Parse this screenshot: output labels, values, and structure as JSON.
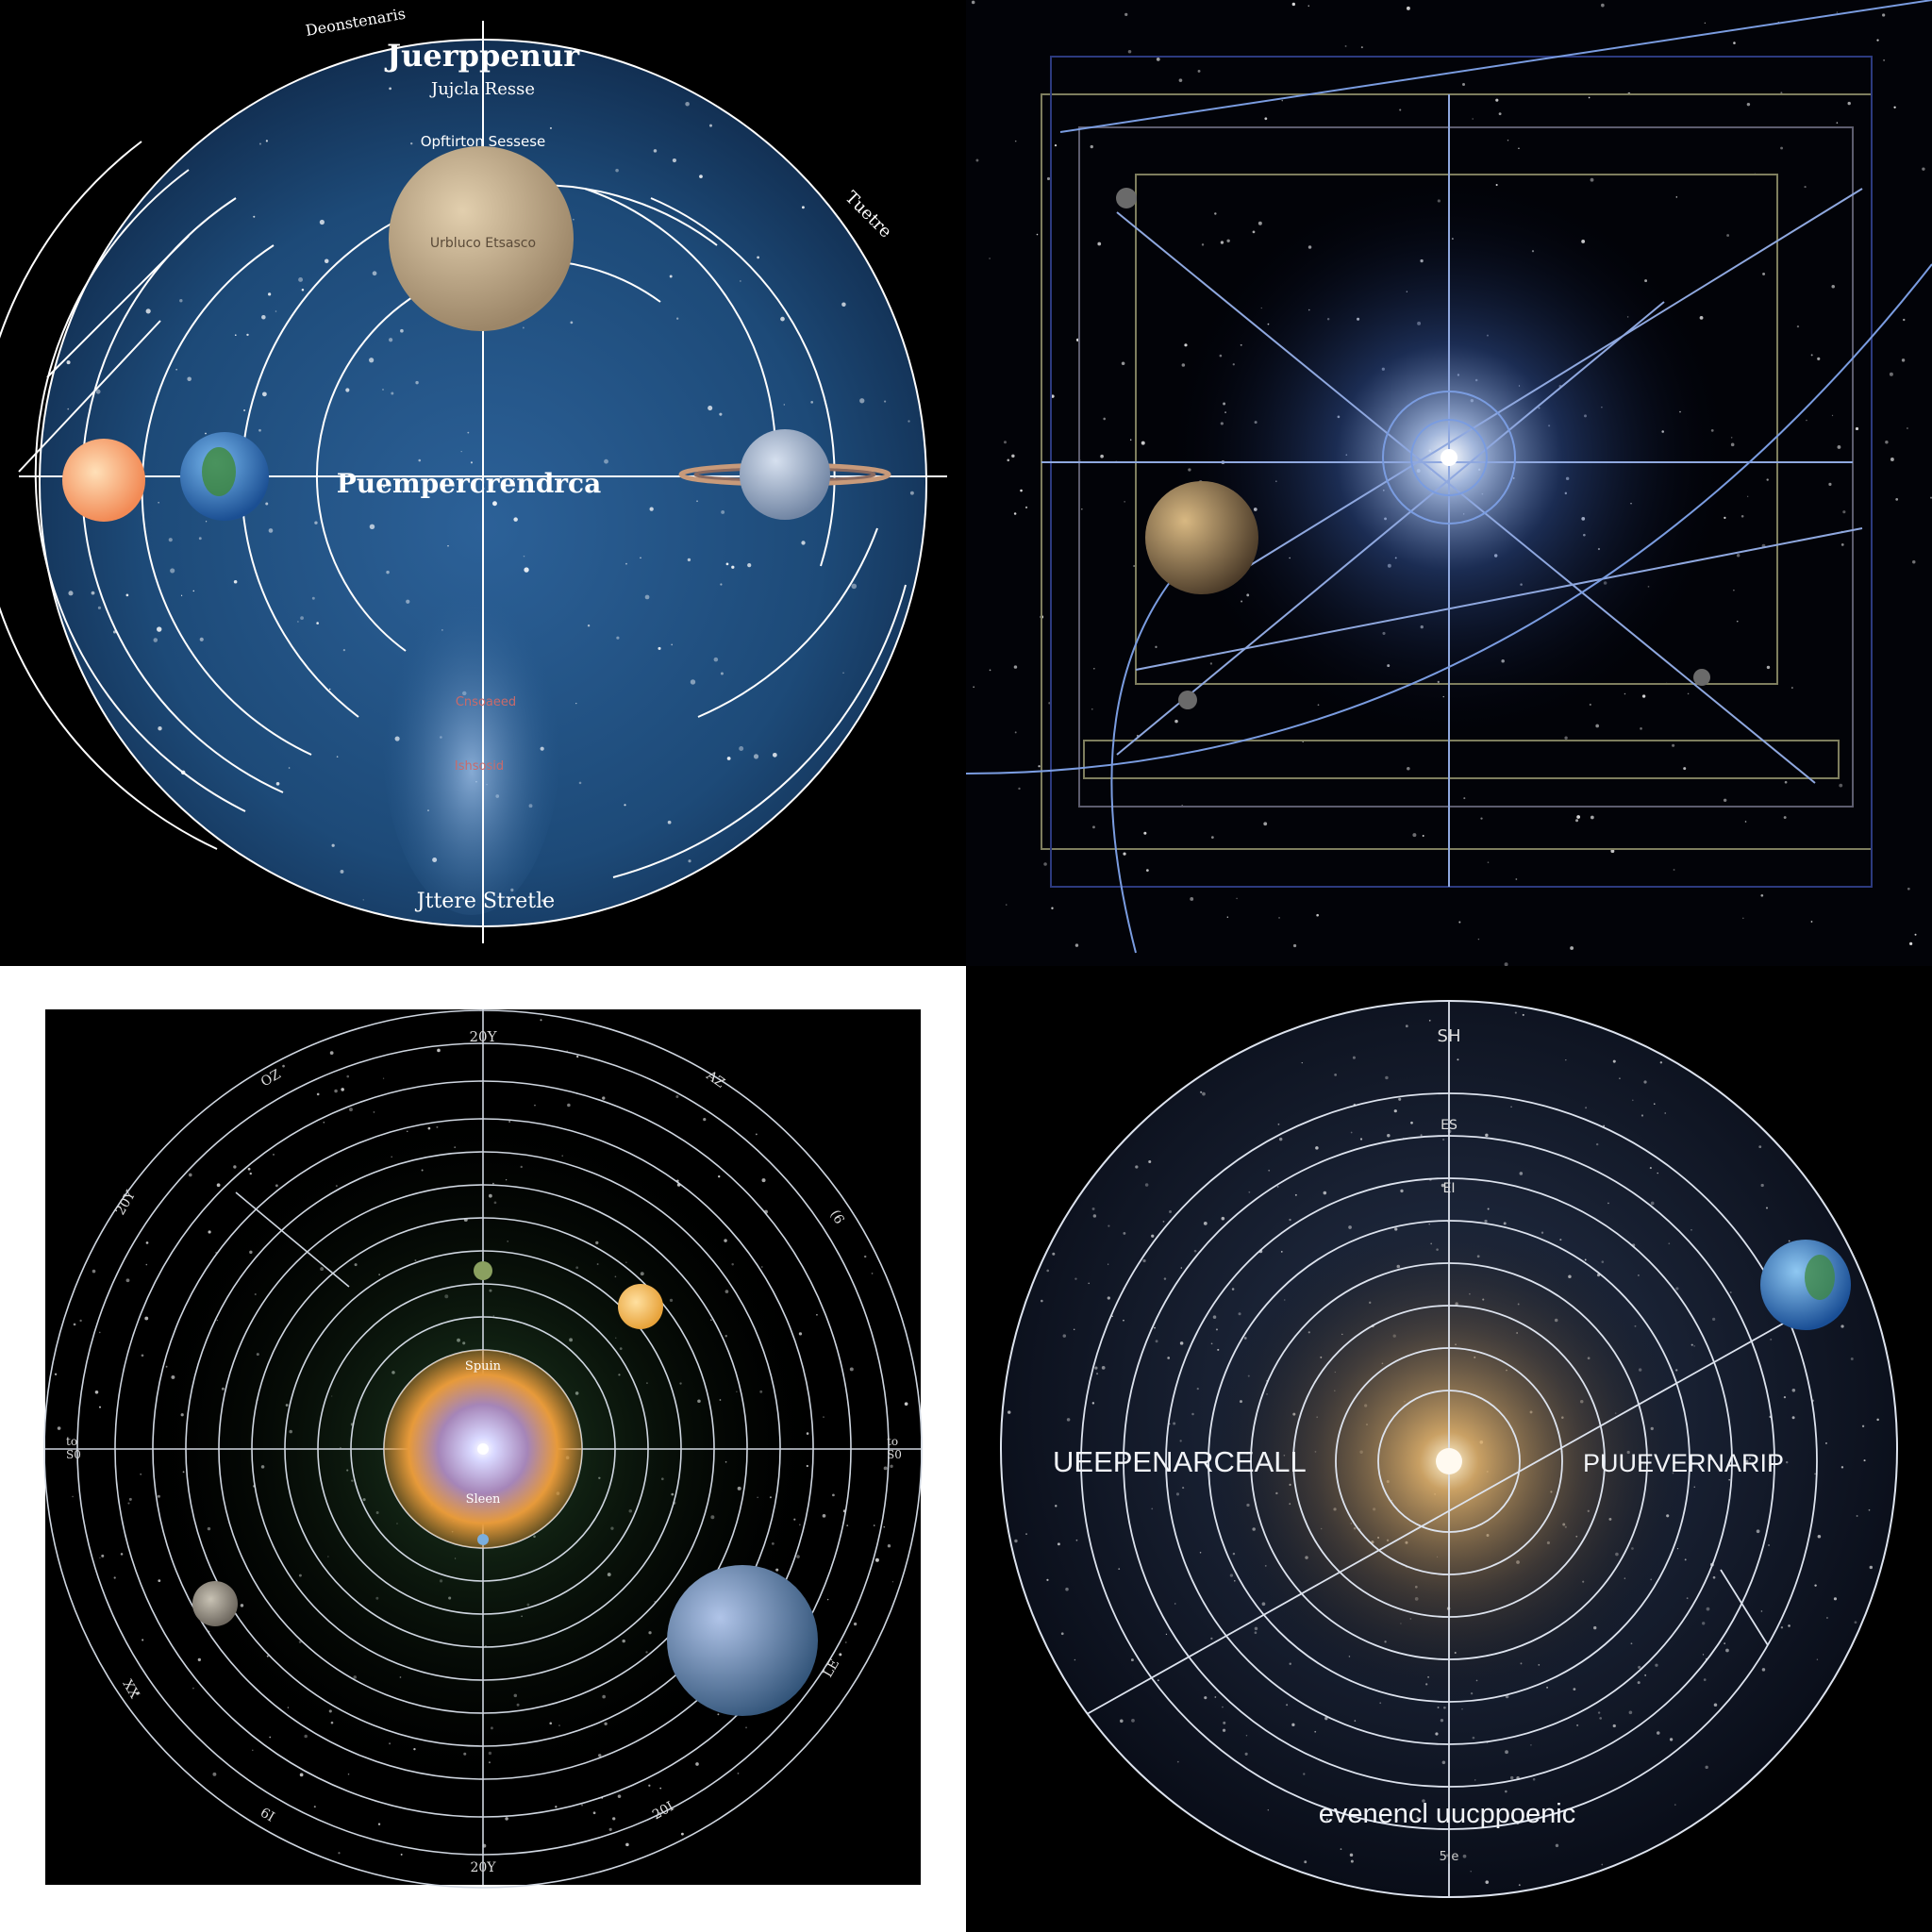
{
  "panel1": {
    "title": "Juerppenur",
    "top_small_label": "Deonstenaris",
    "line2": "Jujcla Resse",
    "line3": "Opftirton Sessese",
    "planet_label": "Urbluco Etsasco",
    "right_label": "Tuetre",
    "center_label": "Puempercrendrca",
    "red_label_1": "Cnsoaeed",
    "red_label_2": "Ishsosid",
    "bottom_label": "Jttere  Stretle"
  },
  "panel2": {},
  "panel3": {
    "top_label": "20Y",
    "ring_labels": [
      "OZ",
      "AZ",
      "20Y",
      "(6",
      "to",
      "to",
      "S0",
      "LE",
      "XX",
      "6I",
      "20I",
      "20Y"
    ],
    "left_labels": [
      "to",
      "S0"
    ],
    "right_labels": [
      "to",
      "S0"
    ],
    "sun_top_label": "Spuin",
    "sun_bottom_label": "Sleen"
  },
  "panel4": {
    "top_label_1": "SH",
    "top_label_2": "ES",
    "top_label_3": "EI",
    "left_label": "UEEPENARCEALL",
    "right_label": "PUUEVERNARIP",
    "bottom_label": "evenencl  uucppoenic",
    "bottom_small": "5|e"
  },
  "colors": {
    "panel1_bg": "#1d4a78",
    "panel3_ring": "#cfd6e0",
    "panel4_glow": "#d9a45a"
  }
}
